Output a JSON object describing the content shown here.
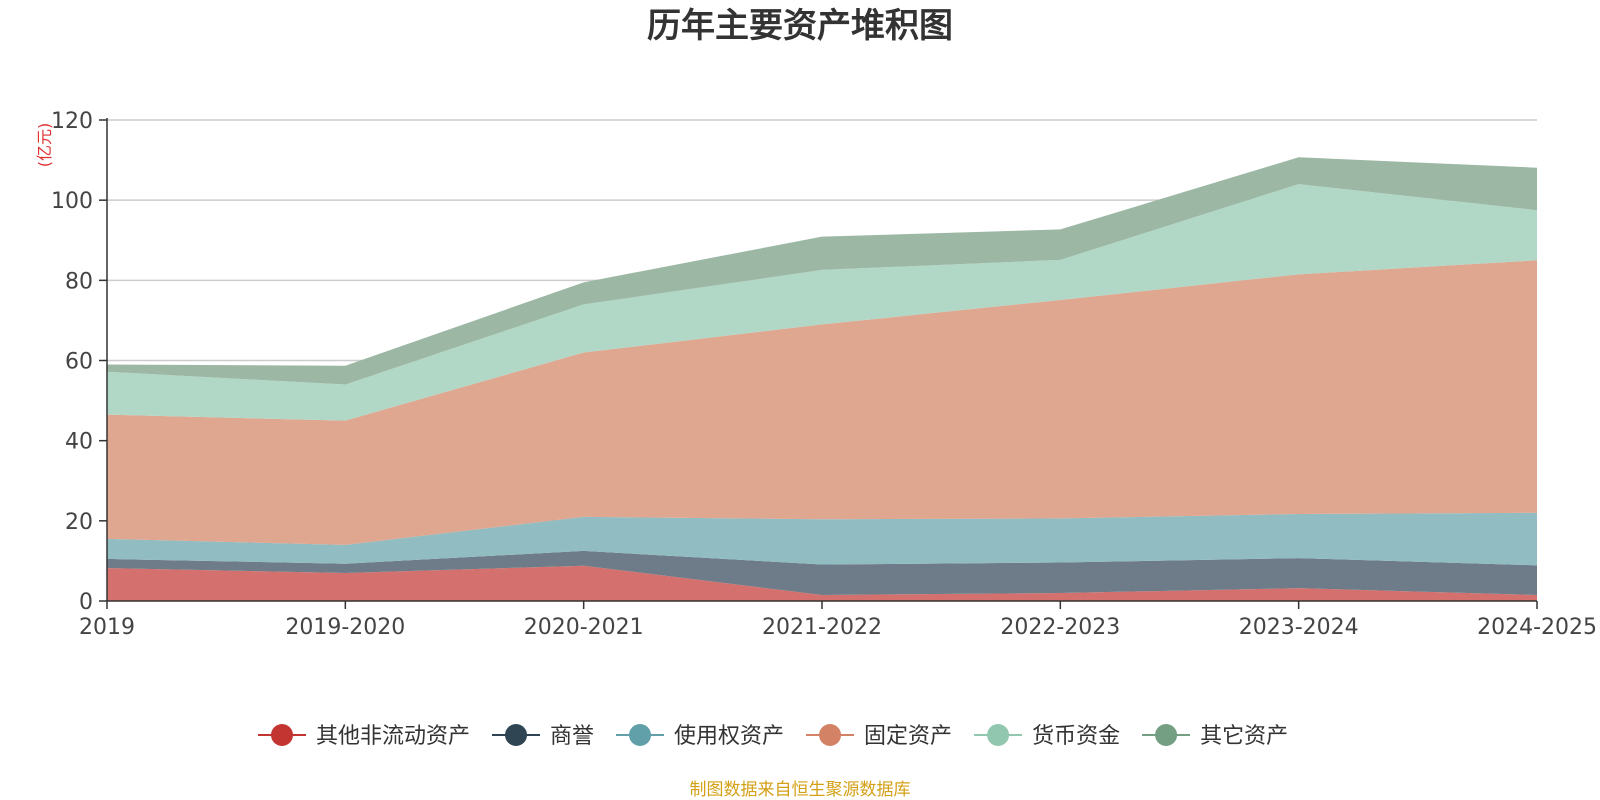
{
  "chart_data": {
    "type": "area",
    "stacked": true,
    "title": "历年主要资产堆积图",
    "unit_label": "(亿元)",
    "categories": [
      "2019",
      "2019-2020",
      "2020-2021",
      "2021-2022",
      "2022-2023",
      "2023-2024",
      "2024-2025"
    ],
    "ylim": [
      0,
      120
    ],
    "yticks": [
      0,
      20,
      40,
      60,
      80,
      100,
      120
    ],
    "grid": true,
    "legend_position": "bottom",
    "series": [
      {
        "name": "其他非流动资产",
        "color": "#c23531",
        "fill": "#d4706d",
        "values": [
          8.2,
          7.0,
          8.8,
          1.5,
          2.0,
          3.2,
          1.5
        ]
      },
      {
        "name": "商誉",
        "color": "#2f4554",
        "fill": "#6d7c88",
        "values": [
          2.3,
          2.3,
          3.7,
          7.6,
          7.6,
          7.5,
          7.4
        ]
      },
      {
        "name": "使用权资产",
        "color": "#61a0a8",
        "fill": "#90bcc2",
        "values": [
          5.0,
          4.7,
          8.5,
          11.3,
          11.0,
          11.0,
          13.1
        ]
      },
      {
        "name": "固定资产",
        "color": "#d48265",
        "fill": "#dfa690",
        "values": [
          31.0,
          31.0,
          41.0,
          48.6,
          54.5,
          59.8,
          63.0
        ]
      },
      {
        "name": "货币资金",
        "color": "#91c7ae",
        "fill": "#b1d7c6",
        "values": [
          10.7,
          9.0,
          12.0,
          13.6,
          10.0,
          22.5,
          12.5
        ]
      },
      {
        "name": "其它资产",
        "color": "#749f83",
        "fill": "#9cb8a5",
        "values": [
          1.8,
          4.7,
          5.5,
          8.3,
          7.6,
          6.7,
          10.6
        ]
      }
    ]
  },
  "footer": {
    "source": "制图数据来自恒生聚源数据库",
    "source_color": "#d4a017"
  }
}
